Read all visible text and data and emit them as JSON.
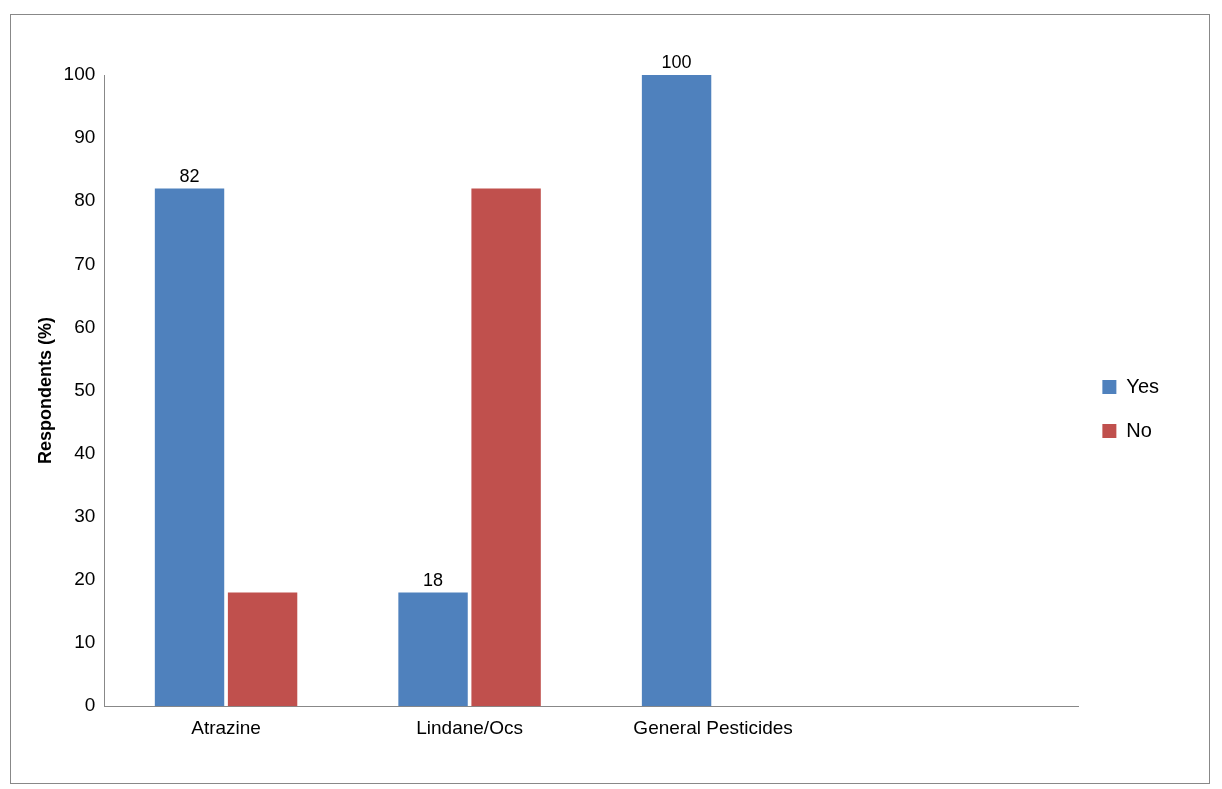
{
  "chart_data": {
    "type": "bar",
    "ylabel": "Respondents (%)",
    "categories": [
      "Atrazine",
      "Lindane/Ocs",
      "General Pesticides",
      null
    ],
    "series": [
      {
        "name": "Yes",
        "color": "#4f81bd",
        "values": [
          82,
          18,
          100,
          null
        ],
        "value_labels": [
          "82",
          "18",
          "100",
          null
        ]
      },
      {
        "name": "No",
        "color": "#c0504d",
        "values": [
          18,
          82,
          0,
          null
        ]
      }
    ],
    "ylim": [
      0,
      100
    ],
    "yticks": [
      0,
      10,
      20,
      30,
      40,
      50,
      60,
      70,
      80,
      90,
      100
    ],
    "grid": false,
    "legend": "right"
  }
}
